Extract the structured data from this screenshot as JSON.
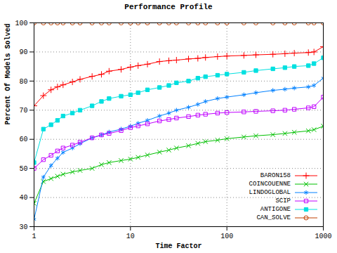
{
  "chart_data": {
    "type": "line",
    "title": "Performance Profile",
    "x_label": "Time Factor",
    "y_label": "Percent Of Models Solved",
    "x": [
      1,
      1.25,
      1.5,
      1.75,
      2,
      2.5,
      3,
      4,
      5,
      6,
      8,
      10,
      12,
      15,
      20,
      25,
      30,
      40,
      50,
      60,
      80,
      100,
      150,
      200,
      300,
      400,
      500,
      700,
      800,
      1000
    ],
    "series": [
      {
        "name": "BARON158",
        "color": "#ff0000",
        "marker": "plus",
        "line_style": "solid",
        "values": [
          71.5,
          75,
          77,
          78,
          78.7,
          79.7,
          80.6,
          81.6,
          82.3,
          83.4,
          84,
          84.8,
          85.3,
          85.8,
          86.7,
          87,
          87.2,
          87.6,
          87.8,
          88.1,
          88.4,
          88.6,
          88.8,
          89,
          89.2,
          89.4,
          89.6,
          89.8,
          90,
          91.8
        ]
      },
      {
        "name": "COINCOUENNE",
        "color": "#00c000",
        "marker": "x",
        "line_style": "solid",
        "values": [
          38,
          45.5,
          46.5,
          47.3,
          48,
          48.8,
          49.3,
          50,
          51.3,
          52,
          52.7,
          53.2,
          53.8,
          54.6,
          55.6,
          56.3,
          57,
          57.8,
          58.6,
          59.2,
          59.7,
          60.2,
          60.8,
          61.2,
          61.6,
          62,
          62.4,
          62.9,
          63.3,
          64.5
        ]
      },
      {
        "name": "LINDOGLOBAL",
        "color": "#0080ff",
        "marker": "star",
        "line_style": "solid",
        "values": [
          32.5,
          47,
          51,
          53.5,
          55.5,
          57,
          58.5,
          60.5,
          61.5,
          62.5,
          63.5,
          64.5,
          65.5,
          66.5,
          68,
          69,
          70,
          71,
          72,
          73,
          74,
          74.5,
          75.3,
          76,
          76.8,
          77.2,
          77.6,
          78,
          78.5,
          81
        ]
      },
      {
        "name": "SCIP",
        "color": "#c000ff",
        "marker": "square",
        "line_style": "solid",
        "values": [
          50,
          53,
          54.5,
          56,
          57,
          58,
          59,
          60.5,
          61.5,
          62,
          63,
          64,
          64.6,
          65.3,
          66.3,
          66.8,
          67.3,
          67.8,
          68.3,
          68.6,
          69,
          69.2,
          69.4,
          69.6,
          69.8,
          70,
          70.3,
          70.8,
          71.2,
          74.5
        ]
      },
      {
        "name": "ANTIGONE",
        "color": "#00e0e0",
        "marker": "filled_square",
        "line_style": "solid",
        "values": [
          52,
          63.5,
          65,
          66.5,
          68,
          69,
          70,
          71.5,
          73,
          74,
          74.8,
          75.3,
          76,
          77,
          77.8,
          78.5,
          79.4,
          80,
          81,
          81.5,
          82,
          82.4,
          83,
          83.6,
          84.2,
          84.6,
          85,
          85.3,
          86,
          88
        ]
      },
      {
        "name": "CAN_SOLVE",
        "color": "#c04000",
        "marker": "circle",
        "line_style": "solid",
        "values": [
          100,
          100,
          100,
          100,
          100,
          100,
          100,
          100,
          100,
          100,
          100,
          100,
          100,
          100,
          100,
          100,
          100,
          100,
          100,
          100,
          100,
          100,
          100,
          100,
          100,
          100,
          100,
          100,
          100,
          100
        ]
      }
    ],
    "xlim": [
      1,
      1000
    ],
    "xticks": [
      1,
      10,
      100,
      1000
    ],
    "ylim": [
      30,
      100
    ],
    "yticks": [
      30,
      40,
      50,
      60,
      70,
      80,
      90,
      100
    ],
    "log": "x",
    "grid": true,
    "legend": "bottom-right"
  }
}
